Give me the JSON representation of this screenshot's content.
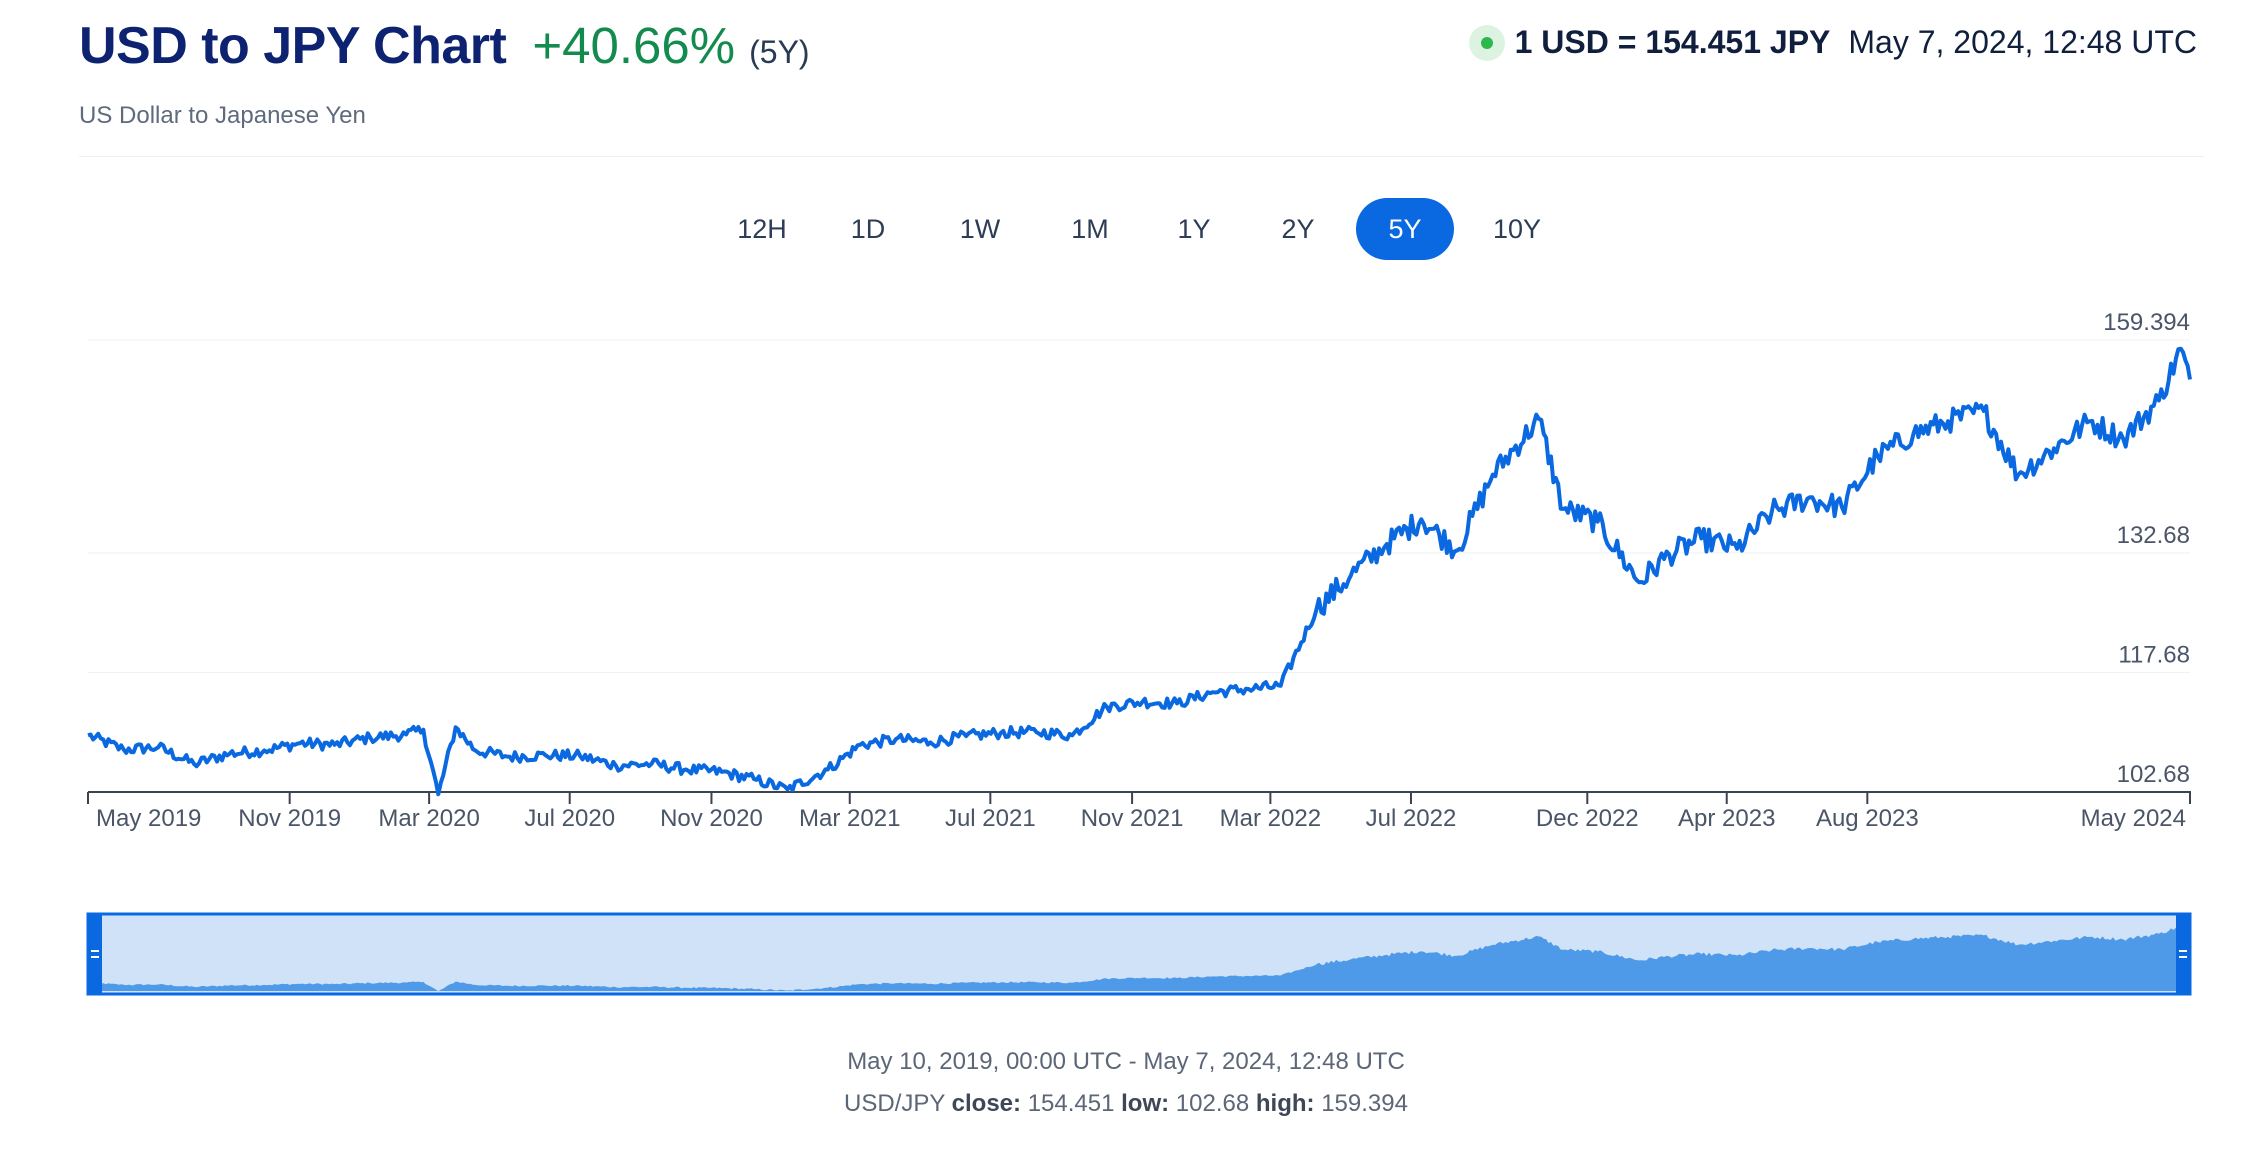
{
  "header": {
    "title": "USD to JPY Chart",
    "change": "+40.66%",
    "change_color": "#138a4e",
    "period": "(5Y)",
    "subtitle": "US Dollar to Japanese Yen",
    "rate": "1 USD = 154.451 JPY",
    "rate_time": "May 7, 2024, 12:48 UTC"
  },
  "ranges": [
    {
      "label": "12H",
      "active": false
    },
    {
      "label": "1D",
      "active": false
    },
    {
      "label": "1W",
      "active": false
    },
    {
      "label": "1M",
      "active": false
    },
    {
      "label": "1Y",
      "active": false
    },
    {
      "label": "2Y",
      "active": false
    },
    {
      "label": "5Y",
      "active": true
    },
    {
      "label": "10Y",
      "active": false
    }
  ],
  "colors": {
    "line": "#0a69e0",
    "accent": "#0a69e0",
    "navigator_bg": "#cfe2f7",
    "navigator_area": "#4e9ae8"
  },
  "chart_data": {
    "type": "line",
    "title": "",
    "xlabel": "",
    "ylabel": "",
    "series": [
      {
        "name": "",
        "x": [
          "2019-05-10",
          "2019-06-10",
          "2019-07-10",
          "2019-08-10",
          "2019-09-10",
          "2019-10-10",
          "2019-11-10",
          "2019-12-10",
          "2020-01-10",
          "2020-02-10",
          "2020-02-25",
          "2020-03-09",
          "2020-03-24",
          "2020-04-10",
          "2020-05-10",
          "2020-06-10",
          "2020-07-10",
          "2020-08-10",
          "2020-09-10",
          "2020-10-10",
          "2020-11-10",
          "2020-12-10",
          "2021-01-06",
          "2021-02-10",
          "2021-03-10",
          "2021-04-10",
          "2021-05-10",
          "2021-06-10",
          "2021-07-10",
          "2021-08-10",
          "2021-09-10",
          "2021-10-10",
          "2021-11-10",
          "2021-12-10",
          "2022-01-10",
          "2022-02-10",
          "2022-03-10",
          "2022-04-10",
          "2022-05-10",
          "2022-06-10",
          "2022-07-10",
          "2022-08-10",
          "2022-09-10",
          "2022-10-20",
          "2022-11-10",
          "2022-12-10",
          "2023-01-15",
          "2023-02-10",
          "2023-03-10",
          "2023-04-10",
          "2023-05-10",
          "2023-06-10",
          "2023-07-10",
          "2023-08-10",
          "2023-09-10",
          "2023-10-10",
          "2023-11-10",
          "2023-12-10",
          "2024-01-10",
          "2024-02-10",
          "2024-03-10",
          "2024-04-10",
          "2024-04-29",
          "2024-05-07"
        ],
        "values": [
          109.8,
          108.0,
          108.3,
          106.2,
          107.5,
          107.9,
          108.8,
          108.6,
          109.5,
          109.9,
          110.5,
          102.4,
          110.8,
          107.9,
          107.1,
          107.3,
          107.2,
          106.0,
          106.2,
          105.5,
          105.2,
          104.2,
          103.0,
          105.5,
          108.6,
          109.3,
          108.9,
          109.7,
          110.1,
          110.2,
          109.8,
          113.4,
          114.0,
          113.8,
          115.2,
          115.6,
          116.0,
          125.6,
          129.9,
          133.8,
          136.9,
          133.0,
          142.5,
          149.5,
          138.2,
          136.6,
          129.0,
          132.5,
          134.5,
          133.2,
          137.8,
          139.5,
          138.4,
          144.8,
          147.6,
          149.2,
          150.5,
          142.5,
          145.8,
          149.2,
          147.0,
          151.8,
          158.3,
          154.451
        ]
      }
    ],
    "y_ticks": [
      102.68,
      117.68,
      132.68,
      159.394
    ],
    "ylim": [
      102.68,
      159.394
    ],
    "x_ticks": [
      {
        "date": "2019-05-10",
        "label": "May 2019"
      },
      {
        "date": "2019-11-01",
        "label": "Nov 2019"
      },
      {
        "date": "2020-03-01",
        "label": "Mar 2020"
      },
      {
        "date": "2020-07-01",
        "label": "Jul 2020"
      },
      {
        "date": "2020-11-01",
        "label": "Nov 2020"
      },
      {
        "date": "2021-03-01",
        "label": "Mar 2021"
      },
      {
        "date": "2021-07-01",
        "label": "Jul 2021"
      },
      {
        "date": "2021-11-01",
        "label": "Nov 2021"
      },
      {
        "date": "2022-03-01",
        "label": "Mar 2022"
      },
      {
        "date": "2022-07-01",
        "label": "Jul 2022"
      },
      {
        "date": "2022-12-01",
        "label": "Dec 2022"
      },
      {
        "date": "2023-04-01",
        "label": "Apr 2023"
      },
      {
        "date": "2023-08-01",
        "label": "Aug 2023"
      },
      {
        "date": "2024-05-07",
        "label": "May 2024"
      }
    ],
    "x_range": [
      "2019-05-10",
      "2024-05-07"
    ],
    "grid": true
  },
  "footer": {
    "range_text": "May 10, 2019, 00:00 UTC - May 7, 2024, 12:48 UTC",
    "pair": "USD/JPY",
    "close_label": "close:",
    "close_value": "154.451",
    "low_label": "low:",
    "low_value": "102.68",
    "high_label": "high:",
    "high_value": "159.394"
  }
}
